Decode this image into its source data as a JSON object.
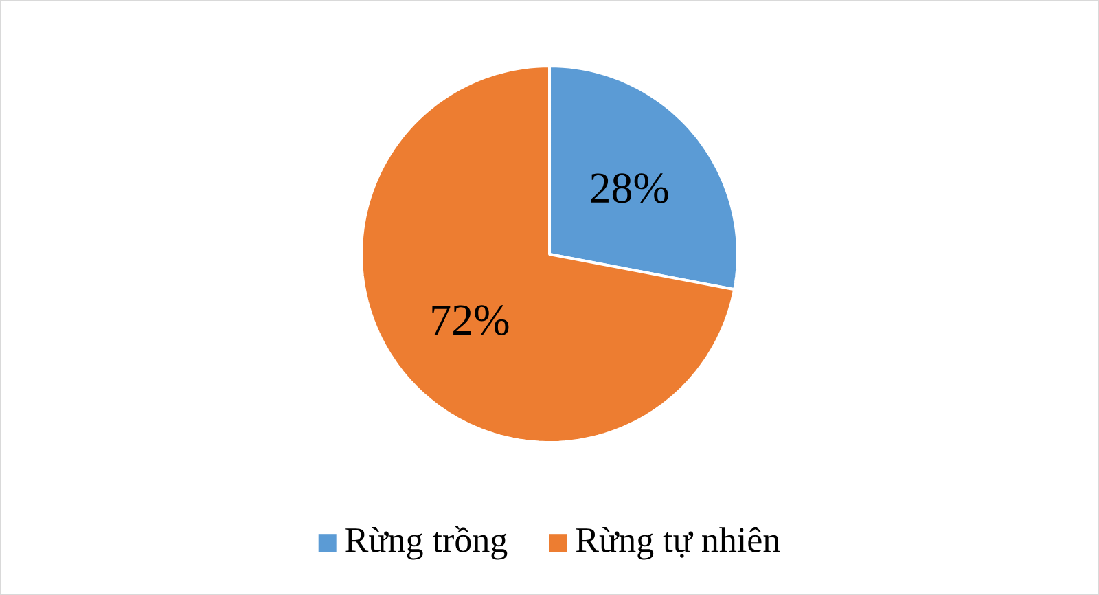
{
  "chart_data": {
    "type": "pie",
    "categories": [
      "Rừng trồng",
      "Rừng tự nhiên"
    ],
    "values": [
      28,
      72
    ],
    "colors": [
      "#5b9bd5",
      "#ed7d31"
    ],
    "value_labels": [
      "28%",
      "72%"
    ],
    "legend": "bottom"
  }
}
